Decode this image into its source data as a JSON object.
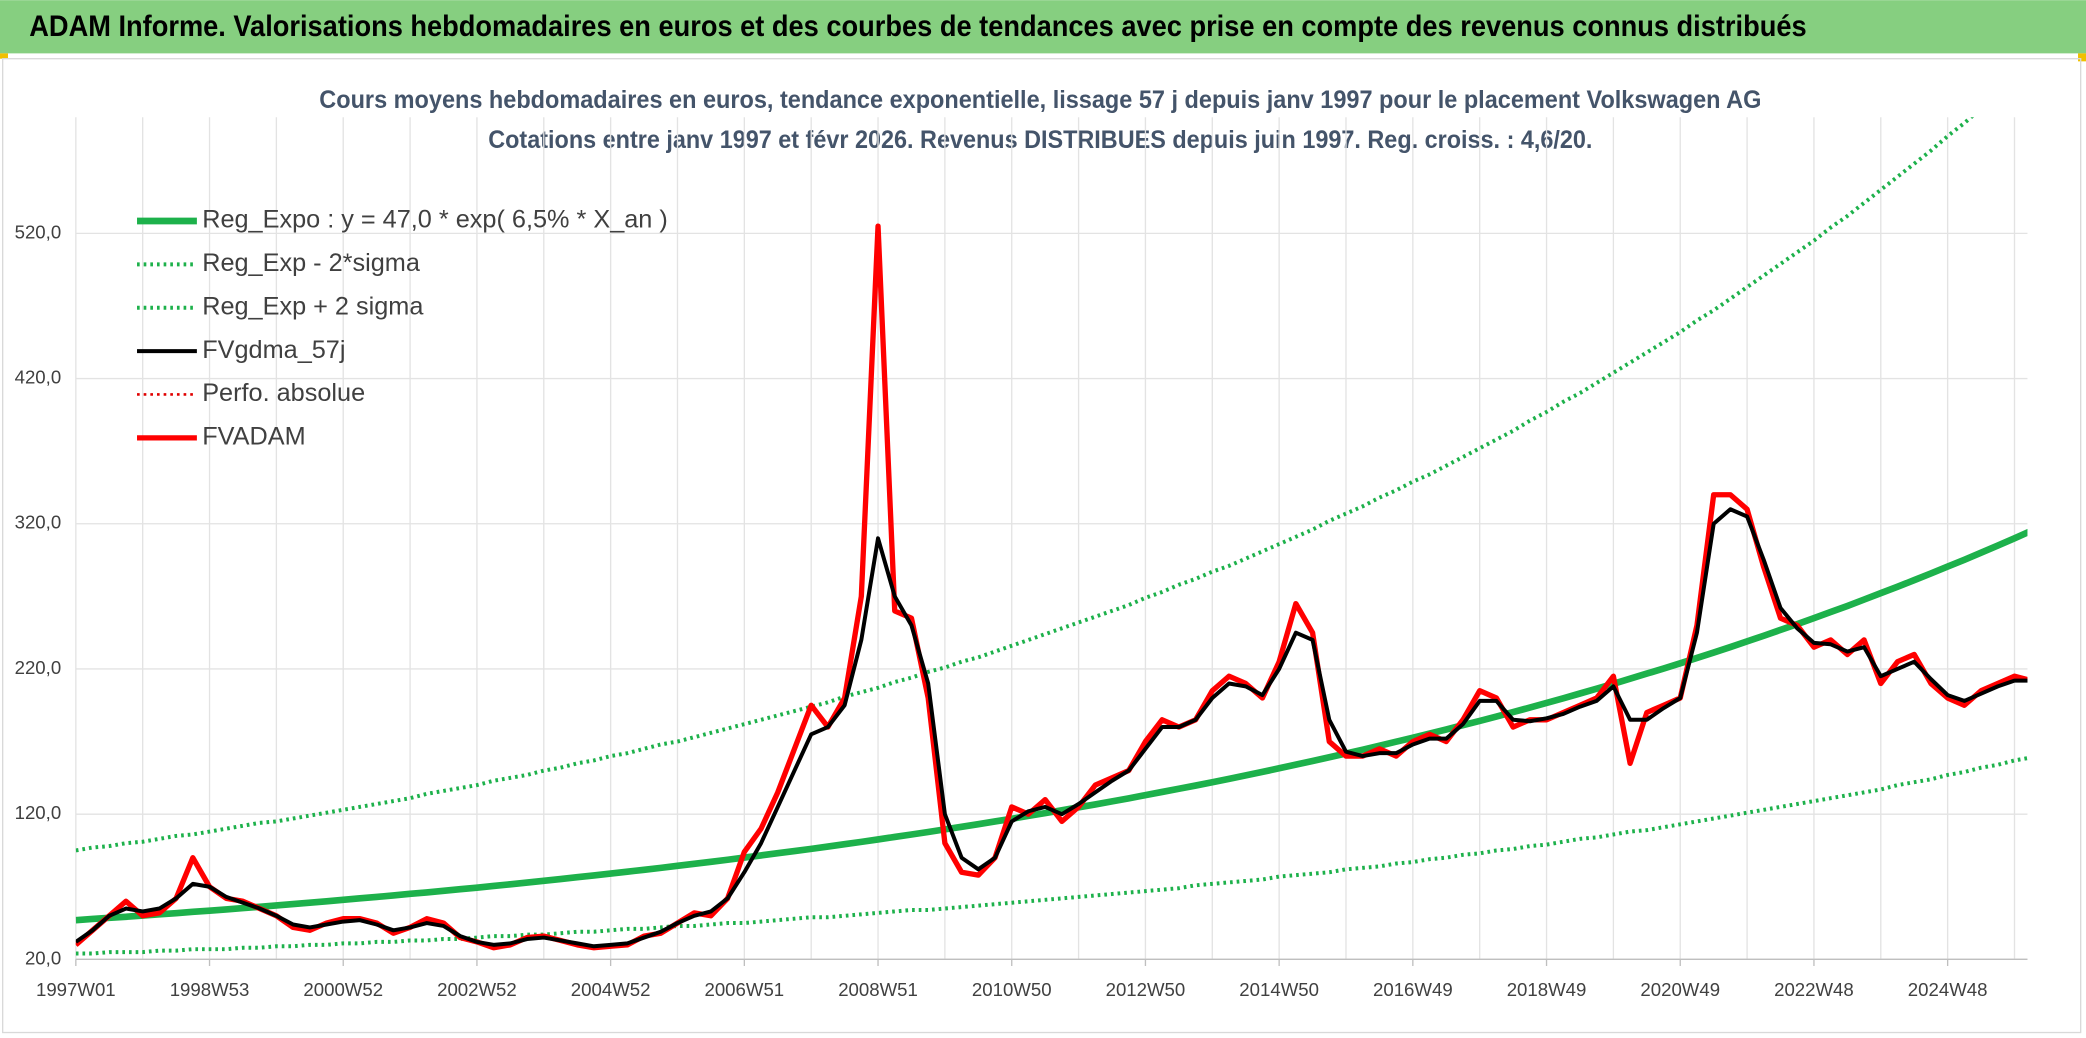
{
  "header": {
    "title": "ADAM Informe. Valorisations hebdomadaires en euros et des courbes de tendances avec prise en compte des revenus connus distribués"
  },
  "chart_data": {
    "type": "line",
    "title": "Cours moyens hebdomadaires en euros, tendance exponentielle, lissage 57 j depuis janv 1997 pour le placement Volkswagen AG",
    "subtitle": "Cotations entre janv 1997 et févr 2026. Revenus DISTRIBUES depuis juin 1997. Reg. croiss. : 4,6/20.",
    "categories": [
      "1997W01",
      null,
      null,
      null,
      null,
      null,
      null,
      null,
      "1998W53",
      null,
      null,
      null,
      null,
      null,
      null,
      null,
      "2000W52",
      null,
      null,
      null,
      null,
      null,
      null,
      null,
      "2002W52",
      null,
      null,
      null,
      null,
      null,
      null,
      null,
      "2004W52",
      null,
      null,
      null,
      null,
      null,
      null,
      null,
      "2006W51",
      null,
      null,
      null,
      null,
      null,
      null,
      null,
      "2008W51",
      null,
      null,
      null,
      null,
      null,
      null,
      null,
      "2010W50",
      null,
      null,
      null,
      null,
      null,
      null,
      null,
      "2012W50",
      null,
      null,
      null,
      null,
      null,
      null,
      null,
      "2014W50",
      null,
      null,
      null,
      null,
      null,
      null,
      null,
      "2016W49",
      null,
      null,
      null,
      null,
      null,
      null,
      null,
      "2018W49",
      null,
      null,
      null,
      null,
      null,
      null,
      null,
      "2020W49",
      null,
      null,
      null,
      null,
      null,
      null,
      null,
      "2022W48",
      null,
      null,
      null,
      null,
      null,
      null,
      null,
      "2024W48",
      null,
      null,
      null,
      null,
      null
    ],
    "ylim": [
      20,
      600
    ],
    "yticks": [
      {
        "value": 20,
        "label": "20,0"
      },
      {
        "value": 120,
        "label": "120,0"
      },
      {
        "value": 220,
        "label": "220,0"
      },
      {
        "value": 320,
        "label": "320,0"
      },
      {
        "value": 420,
        "label": "420,0"
      },
      {
        "value": 520,
        "label": "520,0"
      }
    ],
    "grid": true,
    "legend": "top-left",
    "series": [
      {
        "name": "Reg_Expo : y = 47,0 * exp( 6,5% *  X_an )",
        "color": "#1db14b",
        "line_style": "solid",
        "line_width": 5,
        "values": [
          47.0,
          47.8,
          48.6,
          49.3,
          50.2,
          51.0,
          51.8,
          52.7,
          53.5,
          54.4,
          55.3,
          56.2,
          57.1,
          58.1,
          59.0,
          60.0,
          61.0,
          62.0,
          63.0,
          64.0,
          65.1,
          66.1,
          67.2,
          68.3,
          69.4,
          70.6,
          71.7,
          72.9,
          74.1,
          75.3,
          76.6,
          77.8,
          79.1,
          80.4,
          81.7,
          83.0,
          84.4,
          85.8,
          87.2,
          88.6,
          90.1,
          91.6,
          93.1,
          94.6,
          96.1,
          97.7,
          99.3,
          100.9,
          102.6,
          104.3,
          106.0,
          107.7,
          109.5,
          111.3,
          113.1,
          115.0,
          116.8,
          118.8,
          120.7,
          122.7,
          124.7,
          126.7,
          128.8,
          130.9,
          133.1,
          135.3,
          137.5,
          139.7,
          142.0,
          144.3,
          146.7,
          149.1,
          151.6,
          154.1,
          156.6,
          159.2,
          161.8,
          164.4,
          167.1,
          169.9,
          172.6,
          175.5,
          178.3,
          181.3,
          184.2,
          187.2,
          190.3,
          193.4,
          196.6,
          199.8,
          203.1,
          206.4,
          209.8,
          213.3,
          216.8,
          220.3,
          223.9,
          227.6,
          231.3,
          235.1,
          239.0,
          242.9,
          246.9,
          250.9,
          255.0,
          259.2,
          263.4,
          267.8,
          272.2,
          276.6,
          281.2,
          285.8,
          290.5,
          295.2,
          300.1,
          305.0,
          310.0,
          315.1
        ]
      },
      {
        "name": "Reg_Exp - 2*sigma",
        "color": "#1db14b",
        "line_style": "dotted",
        "line_width": 3,
        "values": [
          24,
          24,
          25,
          25,
          25,
          26,
          26,
          27,
          27,
          27,
          28,
          28,
          29,
          29,
          30,
          30,
          31,
          31,
          32,
          32,
          33,
          33,
          34,
          34,
          35,
          36,
          36,
          37,
          37,
          38,
          39,
          39,
          40,
          41,
          41,
          42,
          43,
          43,
          44,
          45,
          45,
          46,
          47,
          48,
          49,
          49,
          50,
          51,
          52,
          53,
          54,
          54,
          55,
          56,
          57,
          58,
          59,
          60,
          61,
          62,
          63,
          64,
          65,
          66,
          67,
          68,
          69,
          71,
          72,
          73,
          74,
          75,
          77,
          78,
          79,
          80,
          82,
          83,
          84,
          86,
          87,
          89,
          90,
          92,
          93,
          95,
          96,
          98,
          99,
          101,
          103,
          104,
          106,
          108,
          109,
          111,
          113,
          115,
          117,
          119,
          121,
          123,
          125,
          127,
          129,
          131,
          133,
          135,
          137,
          140,
          142,
          144,
          147,
          149,
          152,
          154,
          157,
          159
        ]
      },
      {
        "name": "Reg_Exp + 2 sigma",
        "color": "#1db14b",
        "line_style": "dotted",
        "line_width": 3,
        "values": [
          95,
          97,
          98,
          100,
          101,
          103,
          105,
          106,
          108,
          110,
          112,
          114,
          115,
          117,
          119,
          121,
          123,
          125,
          127,
          129,
          131,
          134,
          136,
          138,
          140,
          143,
          145,
          147,
          150,
          152,
          155,
          157,
          160,
          162,
          165,
          168,
          170,
          173,
          176,
          179,
          182,
          185,
          188,
          191,
          194,
          197,
          201,
          204,
          207,
          211,
          214,
          218,
          221,
          225,
          228,
          232,
          236,
          240,
          244,
          248,
          252,
          256,
          260,
          264,
          269,
          273,
          278,
          282,
          287,
          291,
          296,
          301,
          306,
          311,
          316,
          322,
          327,
          332,
          338,
          343,
          349,
          354,
          360,
          366,
          372,
          378,
          384,
          391,
          397,
          404,
          410,
          417,
          424,
          431,
          438,
          445,
          452,
          460,
          467,
          475,
          483,
          491,
          499,
          507,
          515,
          524,
          532,
          541,
          550,
          559,
          568,
          577,
          587,
          596,
          606,
          616,
          626,
          637
        ]
      },
      {
        "name": "FVgdma_57j",
        "color": "#000000",
        "line_style": "solid",
        "line_width": 3,
        "values": [
          32,
          40,
          50,
          55,
          53,
          55,
          62,
          72,
          70,
          63,
          59,
          55,
          50,
          44,
          42,
          44,
          46,
          47,
          44,
          40,
          42,
          45,
          43,
          36,
          32,
          30,
          31,
          34,
          35,
          33,
          31,
          29,
          30,
          31,
          35,
          39,
          45,
          50,
          53,
          62,
          80,
          100,
          125,
          150,
          175,
          180,
          195,
          240,
          310,
          270,
          250,
          210,
          120,
          90,
          82,
          90,
          115,
          122,
          125,
          120,
          127,
          135,
          143,
          150,
          165,
          180,
          180,
          185,
          200,
          210,
          208,
          202,
          220,
          245,
          240,
          185,
          163,
          160,
          162,
          162,
          168,
          172,
          172,
          182,
          198,
          198,
          185,
          184,
          186,
          189,
          194,
          198,
          208,
          185,
          185,
          193,
          200,
          245,
          320,
          330,
          325,
          295,
          262,
          248,
          238,
          237,
          232,
          235,
          215,
          220,
          225,
          213,
          202,
          198,
          203,
          208,
          212,
          212
        ]
      },
      {
        "name": "Perfo. absolue",
        "color": "#e00000",
        "line_style": "dotted",
        "line_width": 2,
        "values": [
          30,
          40,
          50,
          60,
          50,
          52,
          62,
          90,
          70,
          62,
          60,
          55,
          50,
          42,
          40,
          45,
          48,
          48,
          45,
          38,
          42,
          48,
          45,
          35,
          32,
          28,
          30,
          35,
          36,
          33,
          30,
          28,
          29,
          30,
          36,
          38,
          45,
          52,
          50,
          62,
          94,
          110,
          135,
          165,
          195,
          180,
          200,
          270,
          525,
          260,
          255,
          200,
          100,
          80,
          78,
          90,
          125,
          120,
          130,
          115,
          125,
          140,
          145,
          150,
          170,
          185,
          180,
          185,
          205,
          215,
          210,
          200,
          225,
          265,
          245,
          170,
          160,
          160,
          165,
          160,
          170,
          175,
          170,
          185,
          205,
          200,
          180,
          185,
          185,
          190,
          195,
          200,
          215,
          155,
          190,
          195,
          200,
          250,
          340,
          340,
          330,
          290,
          255,
          250,
          235,
          240,
          230,
          240,
          210,
          225,
          230,
          210,
          200,
          195,
          205,
          210,
          215,
          212
        ]
      },
      {
        "name": "FVADAM",
        "color": "#ff0000",
        "line_style": "solid",
        "line_width": 4,
        "values": [
          30,
          40,
          50,
          60,
          50,
          52,
          62,
          90,
          70,
          62,
          60,
          55,
          50,
          42,
          40,
          45,
          48,
          48,
          45,
          38,
          42,
          48,
          45,
          35,
          32,
          28,
          30,
          35,
          36,
          33,
          30,
          28,
          29,
          30,
          36,
          38,
          45,
          52,
          50,
          62,
          94,
          110,
          135,
          165,
          195,
          180,
          200,
          270,
          525,
          260,
          255,
          200,
          100,
          80,
          78,
          90,
          125,
          120,
          130,
          115,
          125,
          140,
          145,
          150,
          170,
          185,
          180,
          185,
          205,
          215,
          210,
          200,
          225,
          265,
          245,
          170,
          160,
          160,
          165,
          160,
          170,
          175,
          170,
          185,
          205,
          200,
          180,
          185,
          185,
          190,
          195,
          200,
          215,
          155,
          190,
          195,
          200,
          250,
          340,
          340,
          330,
          290,
          255,
          250,
          235,
          240,
          230,
          240,
          210,
          225,
          230,
          210,
          200,
          195,
          205,
          210,
          215,
          212
        ]
      }
    ]
  }
}
